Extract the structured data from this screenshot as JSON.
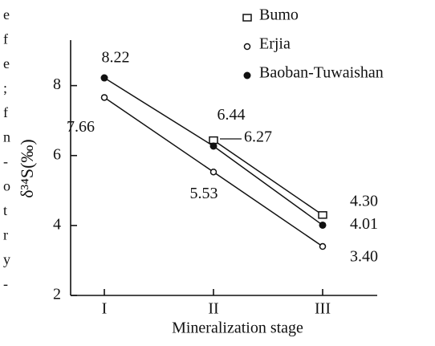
{
  "margin_fragments": [
    "e",
    "f",
    "e",
    ";",
    "f",
    "n",
    "-",
    "o",
    "t",
    "r",
    "y",
    "-"
  ],
  "chart_data": {
    "type": "line",
    "xlabel": "Mineralization stage",
    "ylabel": "δ³⁴S(‰)",
    "categories": [
      "I",
      "II",
      "III"
    ],
    "ylim": [
      2,
      9.3
    ],
    "yticks": [
      2,
      4,
      6,
      8
    ],
    "series": [
      {
        "name": "Bumo",
        "color": "#111111",
        "marker": "square",
        "values": [
          null,
          6.44,
          4.3
        ]
      },
      {
        "name": "Erjia",
        "color": "#111111",
        "marker": "circle-open",
        "values": [
          7.66,
          5.53,
          3.4
        ]
      },
      {
        "name": "Baoban-Tuwaishan",
        "color": "#111111",
        "marker": "circle-filled",
        "values": [
          8.22,
          6.27,
          4.01
        ]
      }
    ],
    "value_labels": [
      [
        null,
        "6.44",
        "4.30"
      ],
      [
        "7.66",
        "5.53",
        "3.40"
      ],
      [
        "8.22",
        "6.27",
        "4.01"
      ]
    ]
  }
}
